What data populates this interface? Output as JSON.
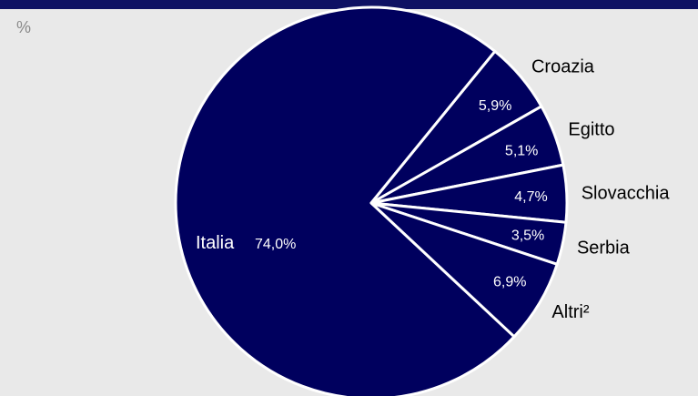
{
  "unit_label": "%",
  "colors": {
    "slice": "#00005e",
    "border": "#ffffff",
    "background": "#e9e9e9",
    "topbar": "#0e1163"
  },
  "chart_data": {
    "type": "pie",
    "title": "",
    "categories": [
      "Italia",
      "Croazia",
      "Egitto",
      "Slovacchia",
      "Serbia",
      "Altri²"
    ],
    "values": [
      74.0,
      5.9,
      5.1,
      4.7,
      3.5,
      6.9
    ],
    "value_labels": [
      "74,0%",
      "5,9%",
      "5,1%",
      "4,7%",
      "3,5%",
      "6,9%"
    ],
    "label_placement": {
      "Italia": "inside",
      "others": "outside"
    }
  }
}
